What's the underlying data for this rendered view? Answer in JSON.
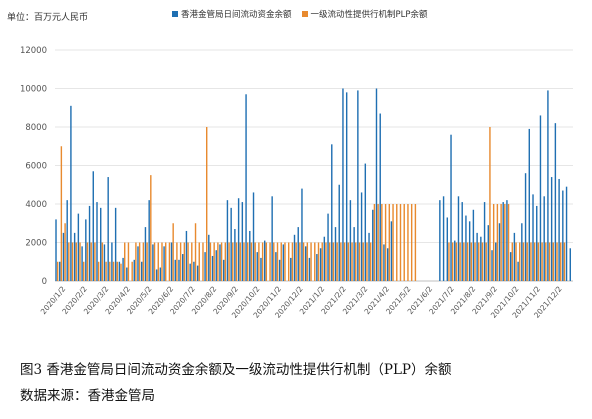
{
  "chart_data": {
    "type": "bar",
    "unit_label": "单位：百万元人民币",
    "series": [
      {
        "name": "香港金管局日间流动资金余额",
        "color": "#1f6fb2",
        "values": [
          3200,
          1000,
          2500,
          4200,
          9100,
          2500,
          3500,
          1800,
          3200,
          3900,
          5700,
          4100,
          3800,
          1900,
          5400,
          2000,
          3800,
          1000,
          1200,
          700,
          0,
          1100,
          1800,
          1000,
          2800,
          4200,
          1900,
          600,
          700,
          1800,
          0,
          2000,
          1100,
          1100,
          1400,
          2600,
          900,
          1000,
          800,
          0,
          1500,
          2400,
          1300,
          1600,
          1900,
          1100,
          4200,
          3800,
          2700,
          4300,
          4100,
          9700,
          2600,
          4600,
          1500,
          1200,
          2100,
          0,
          4400,
          1500,
          1100,
          1900,
          0,
          1200,
          2400,
          2800,
          4800,
          1800,
          1200,
          0,
          1400,
          1700,
          2300,
          3500,
          7100,
          2800,
          5000,
          10000,
          9800,
          4200,
          2800,
          9900,
          4600,
          6100,
          2500,
          3700,
          10000,
          8700,
          1900,
          1700,
          3100,
          0,
          0,
          0,
          0,
          0,
          0,
          0,
          0,
          0,
          0,
          0,
          0,
          4200,
          4400,
          3300,
          7600,
          2100,
          4400,
          4100,
          3400,
          3100,
          3700,
          2500,
          2300,
          4100,
          2900,
          1600,
          2000,
          3000,
          4100,
          4200,
          1500,
          2500,
          1000,
          3000,
          5600,
          7900,
          4500,
          3900,
          8600,
          4400,
          9900,
          5400,
          8200,
          5300,
          4700,
          4900,
          1700
        ]
      },
      {
        "name": "一级流动性提供行机制PLP余额",
        "color": "#e88a2f",
        "values": [
          1000,
          7000,
          3000,
          2000,
          2000,
          2000,
          2000,
          1000,
          2000,
          2000,
          2000,
          1000,
          2000,
          1000,
          1000,
          1000,
          1000,
          900,
          2000,
          2000,
          1000,
          2000,
          2000,
          2000,
          2000,
          5500,
          2000,
          2000,
          2000,
          2000,
          2000,
          3000,
          2000,
          2000,
          2000,
          2000,
          2000,
          3000,
          2000,
          2000,
          8000,
          2000,
          2000,
          2000,
          2000,
          2000,
          2000,
          2000,
          2000,
          2000,
          2000,
          2000,
          2000,
          2000,
          2000,
          2000,
          2000,
          2000,
          2000,
          2000,
          2000,
          2000,
          2000,
          2000,
          2000,
          2000,
          2000,
          2000,
          2000,
          2000,
          2000,
          2000,
          2000,
          2000,
          2000,
          2000,
          2000,
          2000,
          2000,
          2000,
          2000,
          2000,
          2000,
          2000,
          2000,
          4000,
          4000,
          4000,
          4000,
          4000,
          4000,
          4000,
          4000,
          4000,
          4000,
          4000,
          4000,
          0,
          0,
          0,
          0,
          0,
          0,
          0,
          0,
          2000,
          2000,
          2000,
          2000,
          2000,
          2000,
          2000,
          2000,
          2000,
          2000,
          2000,
          8000,
          4000,
          4000,
          4000,
          4000,
          4000,
          2000,
          2000,
          2000,
          2000,
          2000,
          2000,
          2000,
          2000,
          2000,
          2000,
          2000,
          2000,
          2000,
          2000,
          2000
        ]
      }
    ],
    "y_ticks": [
      "0",
      "2000",
      "4000",
      "6000",
      "8000",
      "10000",
      "12000"
    ],
    "ylim": [
      0,
      12000
    ],
    "x_ticks": [
      "2020/1/2",
      "2020/2/2",
      "2020/3/2",
      "2020/4/2",
      "2020/5/2",
      "2020/6/2",
      "2020/7/2",
      "2020/8/2",
      "2020/9/2",
      "2020/10/2",
      "2020/11/2",
      "2020/12/2",
      "2021/1/2",
      "2021/2/2",
      "2021/3/2",
      "2021/4/2",
      "2021/5/2",
      "2021/6/2",
      "2021/7/2",
      "2021/8/2",
      "2021/9/2",
      "2021/10/2",
      "2021/11/2",
      "2021/12/2"
    ],
    "grid": true,
    "legend_position": "top"
  },
  "caption": "图3 香港金管局日间流动资金余额及一级流动性提供行机制（PLP）余额",
  "source": "数据来源：香港金管局"
}
